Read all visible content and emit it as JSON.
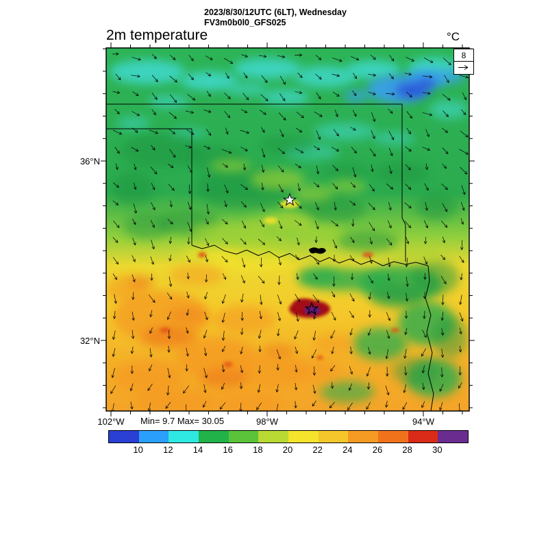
{
  "header": {
    "line1": "2023/8/30/12UTC (6LT), Wednesday",
    "line2": "FV3m0b0l0_GFS025"
  },
  "title": "2m temperature",
  "units_label": "°C",
  "wind_reference": {
    "value": "8"
  },
  "axes": {
    "lat_labels": [
      "36°N",
      "32°N"
    ],
    "lon_labels": [
      "102°W",
      "98°W",
      "94°W"
    ]
  },
  "stats_label": "Min= 9.7 Max= 30.05",
  "colorbar": {
    "tick_labels": [
      "10",
      "12",
      "14",
      "16",
      "18",
      "20",
      "22",
      "24",
      "26",
      "28",
      "30"
    ],
    "colors": [
      "#2a3fd4",
      "#2b9ffc",
      "#2fe8e2",
      "#21b24a",
      "#5ac33a",
      "#b9da32",
      "#f5e32c",
      "#f5c62c",
      "#f59a22",
      "#f0731c",
      "#d92b18",
      "#6a2d8f"
    ]
  },
  "palette": {
    "base_green": "#2bac4e",
    "dark_green": "#1f9440",
    "cyan": "#3fd9cf",
    "light_blue": "#3b9ef0",
    "blue": "#2a52d8",
    "yellow_green": "#a8d435",
    "yellow": "#f5e32c",
    "orange": "#f59a22",
    "dark_orange": "#ef7f1a",
    "red": "#e04a12",
    "dark_red": "#a50f15",
    "purple": "#5c1d82"
  },
  "chart_data": {
    "type": "heatmap",
    "title": "2m temperature",
    "units": "°C",
    "datetime": "2023/8/30/12UTC (6LT), Wednesday",
    "model": "FV3m0b0l0_GFS025",
    "min": 9.7,
    "max": 30.05,
    "levels": [
      10,
      12,
      14,
      16,
      18,
      20,
      22,
      24,
      26,
      28,
      30
    ],
    "level_colors": [
      "#2a3fd4",
      "#2b9ffc",
      "#2fe8e2",
      "#21b24a",
      "#5ac33a",
      "#b9da32",
      "#f5e32c",
      "#f5c62c",
      "#f59a22",
      "#f0731c",
      "#d92b18",
      "#6a2d8f"
    ],
    "x_ticks": [
      "102°W",
      "98°W",
      "94°W"
    ],
    "y_ticks": [
      "36°N",
      "32°N"
    ],
    "wind_reference_ms": 8,
    "overlays": [
      "wind vector arrows",
      "state borders (Oklahoma / Texas region)",
      "two star markers",
      "lake polygon"
    ]
  }
}
